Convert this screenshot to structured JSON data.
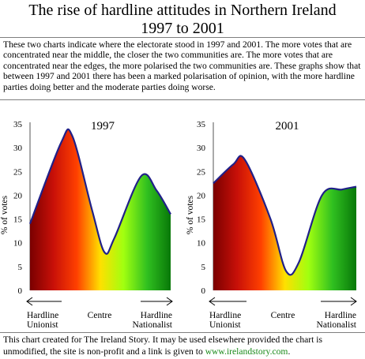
{
  "page": {
    "title_line1": "The rise of hardline attitudes in Northern Ireland",
    "title_line2": "1997 to 2001",
    "intro": "These two charts indicate where the electorate stood in 1997 and 2001. The more votes that are concentrated near the middle, the closer the two communities are. The more votes that are concentrated near the edges, the more polarised the two communities are. These graphs show that between 1997 and 2001 there has been a marked polarisation of opinion, with the more hardline parties doing better and the moderate parties doing worse.",
    "footer_text": "This chart created for The Ireland Story. It may be used elsewhere provided the chart is unmodified, the site is non-profit and a link is given to",
    "footer_link": "www.irelandstory.com",
    "footer_end": "."
  },
  "colors": {
    "gradient": [
      "#7a0000",
      "#c81008",
      "#ff4000",
      "#ffe000",
      "#a0ff10",
      "#30c020",
      "#087808"
    ],
    "curve": "#202088"
  },
  "chart_data": [
    {
      "type": "area",
      "title": "1997",
      "ylabel": "% of votes",
      "ylim": [
        0,
        35
      ],
      "yticks": [
        0,
        5,
        10,
        15,
        20,
        25,
        30,
        35
      ],
      "x_labels": {
        "left": [
          "Hardline",
          "Unionist"
        ],
        "centre": "Centre",
        "right": [
          "Hardline",
          "Nationalist"
        ]
      },
      "points": [
        {
          "x": 0.0,
          "y": 14
        },
        {
          "x": 0.22,
          "y": 31
        },
        {
          "x": 0.3,
          "y": 32.5
        },
        {
          "x": 0.44,
          "y": 17
        },
        {
          "x": 0.53,
          "y": 8
        },
        {
          "x": 0.6,
          "y": 11
        },
        {
          "x": 0.79,
          "y": 24
        },
        {
          "x": 0.9,
          "y": 21
        },
        {
          "x": 1.0,
          "y": 16
        }
      ]
    },
    {
      "type": "area",
      "title": "2001",
      "ylabel": "% of votes",
      "ylim": [
        0,
        35
      ],
      "yticks": [
        0,
        5,
        10,
        15,
        20,
        25,
        30,
        35
      ],
      "x_labels": {
        "left": [
          "Hardline",
          "Unionist"
        ],
        "centre": "Centre",
        "right": [
          "Hardline",
          "Nationalist"
        ]
      },
      "points": [
        {
          "x": 0.0,
          "y": 22.5
        },
        {
          "x": 0.14,
          "y": 26.5
        },
        {
          "x": 0.22,
          "y": 27.5
        },
        {
          "x": 0.4,
          "y": 15
        },
        {
          "x": 0.51,
          "y": 4
        },
        {
          "x": 0.6,
          "y": 6
        },
        {
          "x": 0.76,
          "y": 20
        },
        {
          "x": 0.9,
          "y": 21.2
        },
        {
          "x": 1.0,
          "y": 21.8
        }
      ]
    }
  ]
}
